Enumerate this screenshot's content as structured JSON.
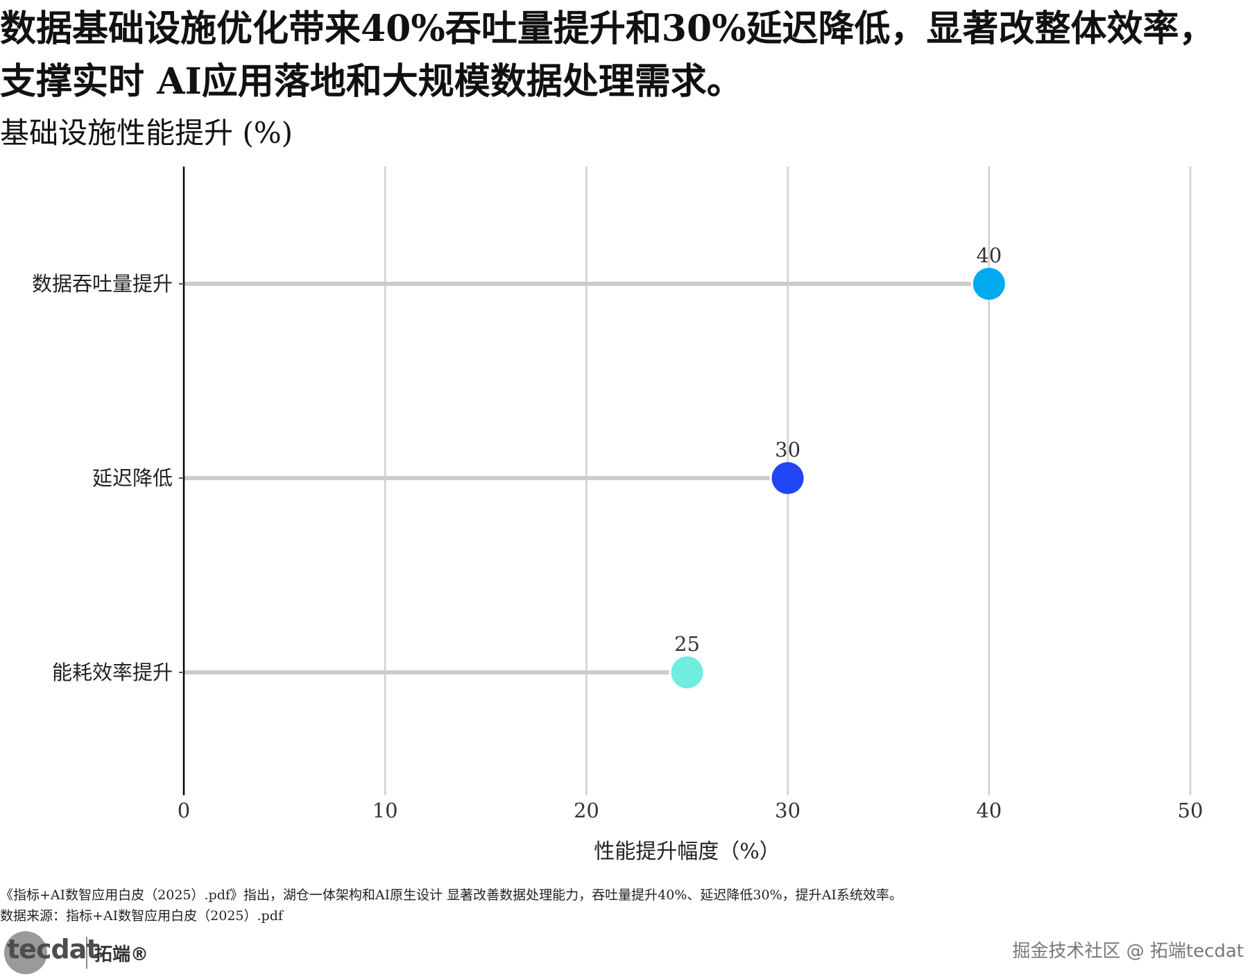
{
  "title": "数据基础设施优化带来40%吞吐量提升和30%延迟降低，显著改整体效率，\n支撑实时 AI应用落地和大规模数据处理需求。",
  "subtitle": "基础设施性能提升 (%)",
  "caption": "《指标+AI数智应用白皮（2025）.pdf》指出，湖仓一体架构和AI原生设计 显著改善数据处理能力，吞吐量提升40%、延迟降低30%，提升AI系统效率。",
  "source": "数据来源：指标+AI数智应用白皮（2025）.pdf",
  "logo": {
    "word": "tecdat",
    "cn": "拓端®"
  },
  "watermark": "掘金技术社区 @ 拓端tecdat",
  "chart_data": {
    "type": "lollipop",
    "orientation": "horizontal",
    "categories": [
      "数据吞吐量提升",
      "延迟降低",
      "能耗效率提升"
    ],
    "values": [
      40,
      30,
      25
    ],
    "point_colors": [
      "#00A9F0",
      "#2046F5",
      "#70ECE0"
    ],
    "stem_color": "#cccccc",
    "title": "",
    "xlabel": "性能提升幅度（%）",
    "ylabel": "",
    "xlim": [
      0,
      50
    ],
    "xticks": [
      0,
      10,
      20,
      30,
      40,
      50
    ],
    "grid": "vertical",
    "data_labels": true
  }
}
